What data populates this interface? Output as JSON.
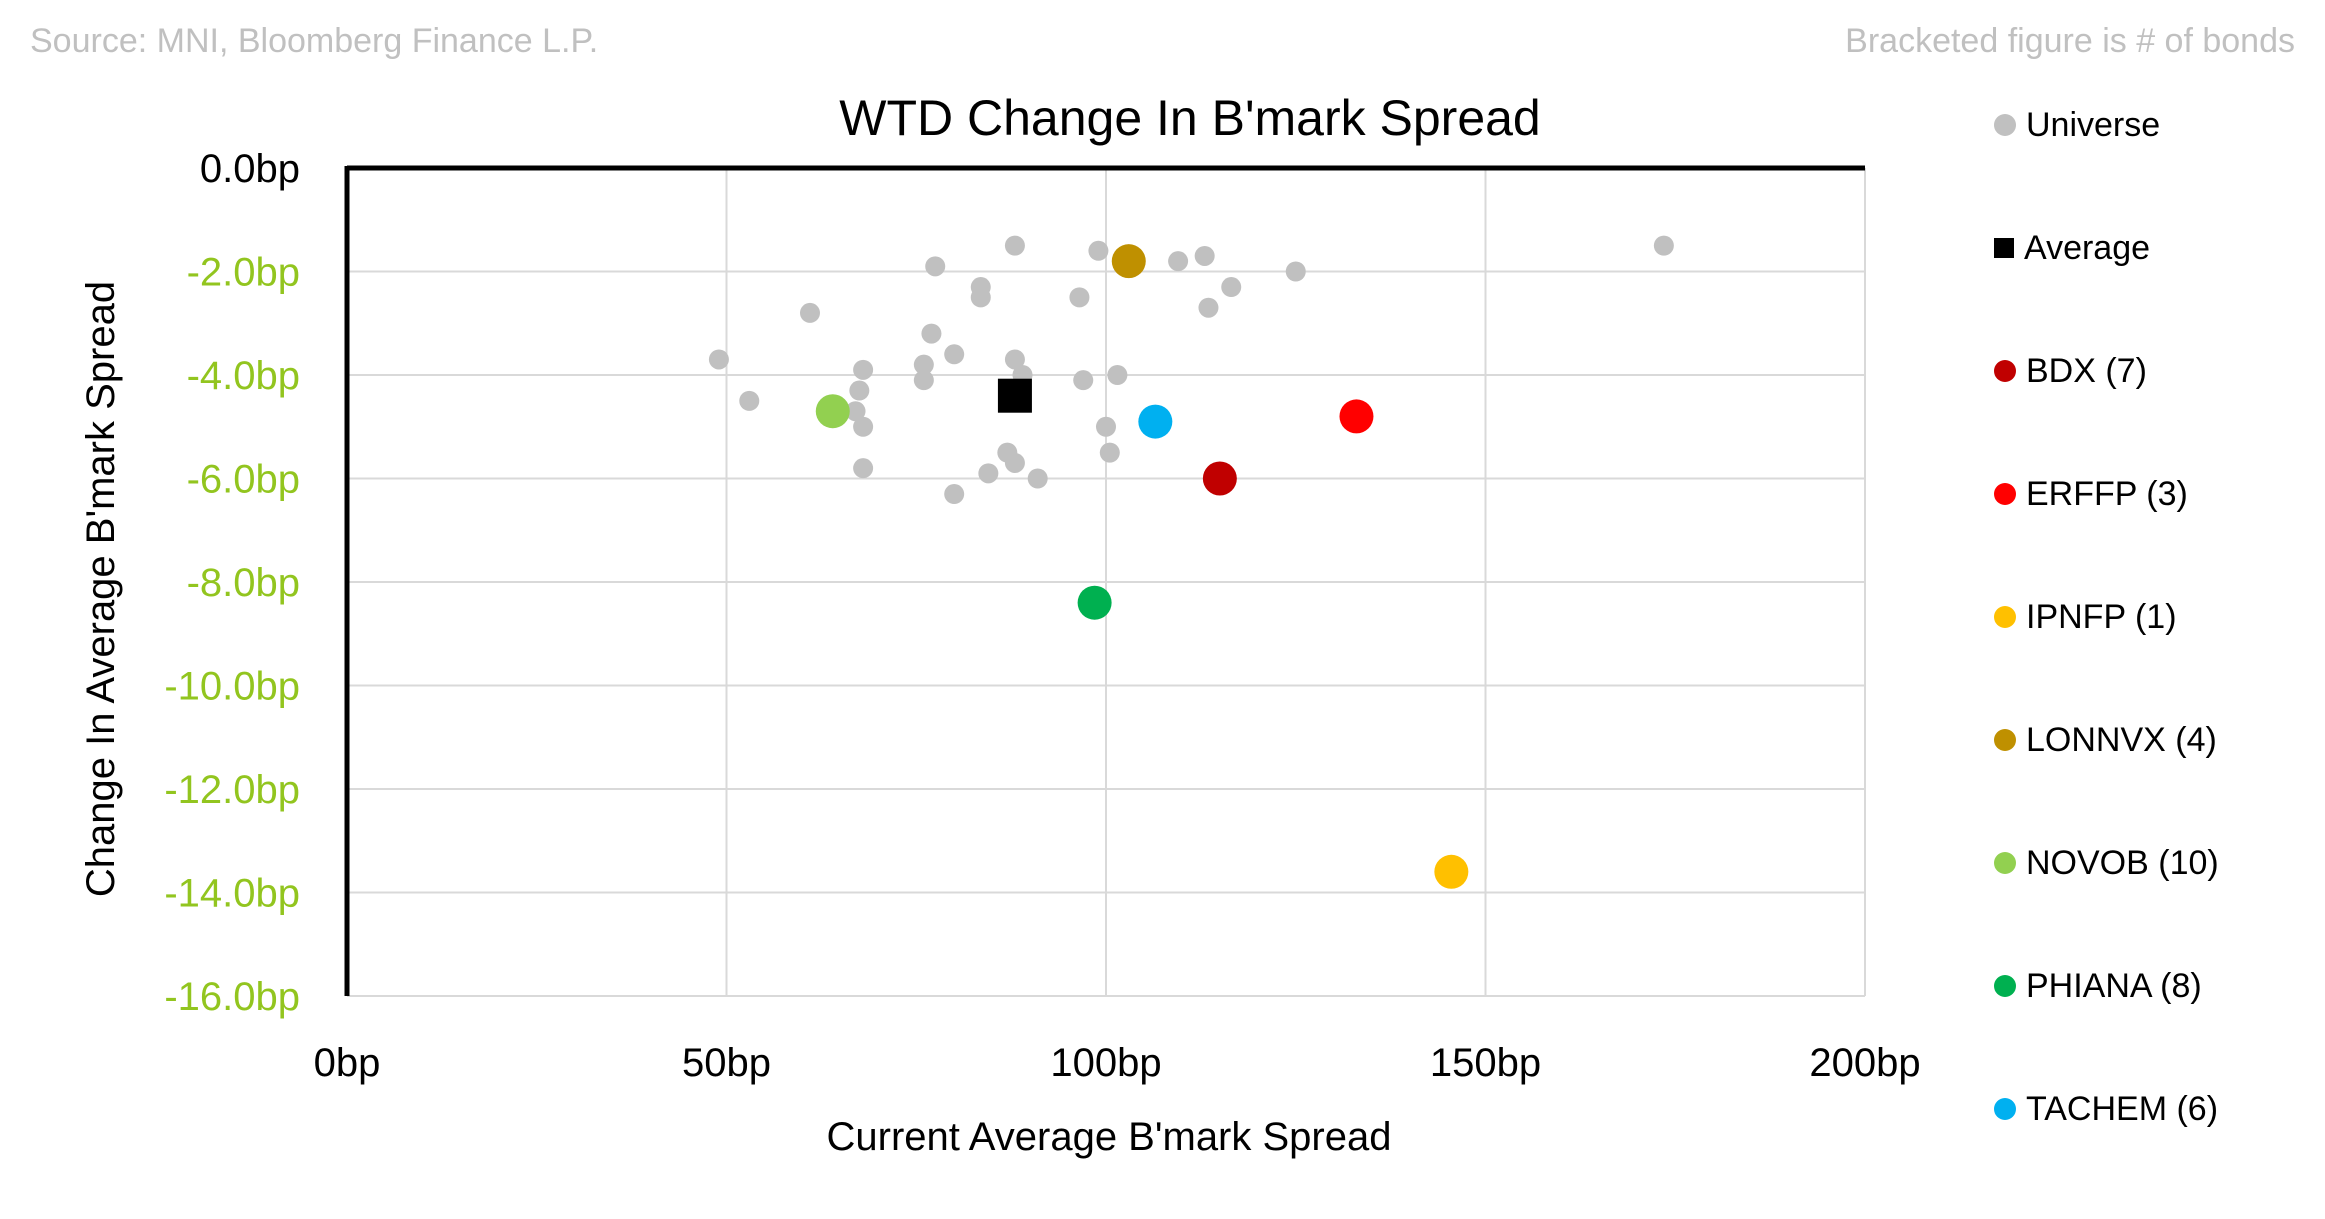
{
  "source_note": "Source: MNI, Bloomberg Finance L.P.",
  "bracket_note": "Bracketed figure is # of bonds",
  "chart_data": {
    "type": "scatter",
    "title": "WTD Change In B'mark Spread",
    "xlabel": "Current Average B'mark Spread",
    "ylabel": "Change In Average B'mark Spread",
    "xlim": [
      0,
      200
    ],
    "ylim": [
      -16,
      0
    ],
    "x_ticks": [
      0,
      50,
      100,
      150,
      200
    ],
    "x_tick_labels": [
      "0bp",
      "50bp",
      "100bp",
      "150bp",
      "200bp"
    ],
    "y_ticks": [
      0,
      -2,
      -4,
      -6,
      -8,
      -10,
      -12,
      -14,
      -16
    ],
    "y_tick_labels": [
      "0.0bp",
      "-2.0bp",
      "-4.0bp",
      "-6.0bp",
      "-8.0bp",
      "-10.0bp",
      "-12.0bp",
      "-14.0bp",
      "-16.0bp"
    ],
    "negative_tick_color": "#92c51f",
    "grid": true,
    "legend_position": "right",
    "series": [
      {
        "name": "Universe",
        "label": "Universe",
        "color": "#c0c0c0",
        "marker": "circle-small",
        "points": [
          [
            49,
            -3.7
          ],
          [
            53,
            -4.5
          ],
          [
            61,
            -2.8
          ],
          [
            68,
            -3.9
          ],
          [
            67.5,
            -4.3
          ],
          [
            67,
            -4.7
          ],
          [
            68,
            -5.0
          ],
          [
            68,
            -5.8
          ],
          [
            76,
            -3.8
          ],
          [
            76,
            -4.1
          ],
          [
            77,
            -3.2
          ],
          [
            77.5,
            -1.9
          ],
          [
            80,
            -3.6
          ],
          [
            80,
            -6.3
          ],
          [
            83.5,
            -2.3
          ],
          [
            83.5,
            -2.5
          ],
          [
            84.5,
            -5.9
          ],
          [
            87,
            -5.5
          ],
          [
            88,
            -5.7
          ],
          [
            88,
            -1.5
          ],
          [
            88,
            -3.7
          ],
          [
            89,
            -4.0
          ],
          [
            91,
            -6.0
          ],
          [
            96.5,
            -2.5
          ],
          [
            97,
            -4.1
          ],
          [
            99,
            -1.6
          ],
          [
            100,
            -5.0
          ],
          [
            100.5,
            -5.5
          ],
          [
            101.5,
            -4.0
          ],
          [
            109.5,
            -1.8
          ],
          [
            113,
            -1.7
          ],
          [
            113.5,
            -2.7
          ],
          [
            116.5,
            -2.3
          ],
          [
            125,
            -2.0
          ],
          [
            173.5,
            -1.5
          ]
        ]
      },
      {
        "name": "Average",
        "label": "Average",
        "color": "#000000",
        "marker": "square",
        "points": [
          [
            88,
            -4.4
          ]
        ]
      },
      {
        "name": "BDX",
        "label": "BDX  (7)",
        "color": "#c00000",
        "marker": "circle",
        "points": [
          [
            115,
            -6.0
          ]
        ]
      },
      {
        "name": "ERFFP",
        "label": "ERFFP  (3)",
        "color": "#ff0000",
        "marker": "circle",
        "points": [
          [
            133,
            -4.8
          ]
        ]
      },
      {
        "name": "IPNFP",
        "label": "IPNFP  (1)",
        "color": "#ffc000",
        "marker": "circle",
        "points": [
          [
            145.5,
            -13.6
          ]
        ]
      },
      {
        "name": "LONNVX",
        "label": "LONNVX  (4)",
        "color": "#bf9000",
        "marker": "circle",
        "points": [
          [
            103,
            -1.8
          ]
        ]
      },
      {
        "name": "NOVOB",
        "label": "NOVOB  (10)",
        "color": "#92d050",
        "marker": "circle",
        "points": [
          [
            64,
            -4.7
          ]
        ]
      },
      {
        "name": "PHIANA",
        "label": "PHIANA  (8)",
        "color": "#00b050",
        "marker": "circle",
        "points": [
          [
            98.5,
            -8.4
          ]
        ]
      },
      {
        "name": "TACHEM",
        "label": "TACHEM  (6)",
        "color": "#00b0f0",
        "marker": "circle",
        "points": [
          [
            106.5,
            -4.9
          ]
        ]
      }
    ]
  }
}
